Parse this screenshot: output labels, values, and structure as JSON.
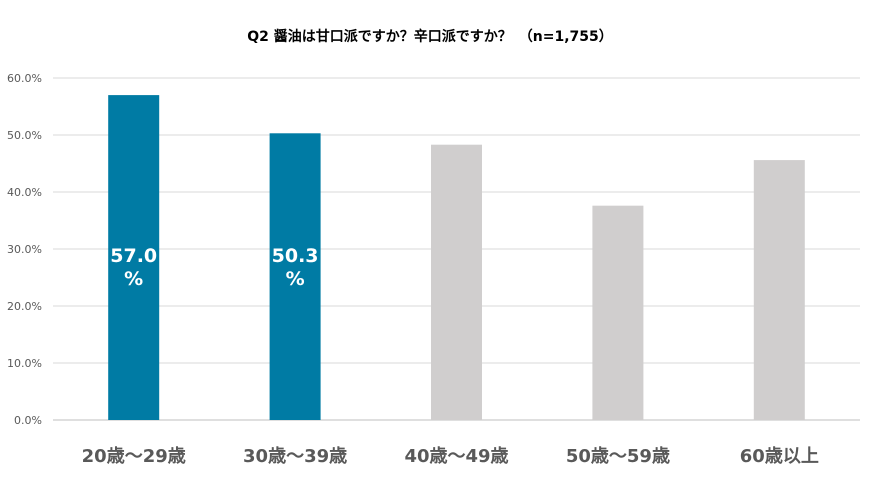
{
  "chart_data": {
    "type": "bar",
    "title": "Q2 醤油は甘口派ですか？辛口派ですか？　（n=1,755）",
    "xlabel": "",
    "ylabel": "",
    "categories": [
      "20歳～29歳",
      "30歳～39歳",
      "40歳～49歳",
      "50歳～59歳",
      "60歳以上"
    ],
    "values": [
      57.0,
      50.3,
      48.3,
      37.6,
      45.6
    ],
    "data_labels": [
      "57.0%",
      "50.3%",
      "",
      "",
      ""
    ],
    "highlight": [
      true,
      true,
      false,
      false,
      false
    ],
    "ylim": [
      0,
      60
    ],
    "yticks": [
      "0.0%",
      "10.0%",
      "20.0%",
      "30.0%",
      "40.0%",
      "50.0%",
      "60.0%"
    ],
    "grid": true,
    "legend": "none",
    "colors": {
      "highlight": "#007BA4",
      "normal": "#D0CECE"
    }
  }
}
